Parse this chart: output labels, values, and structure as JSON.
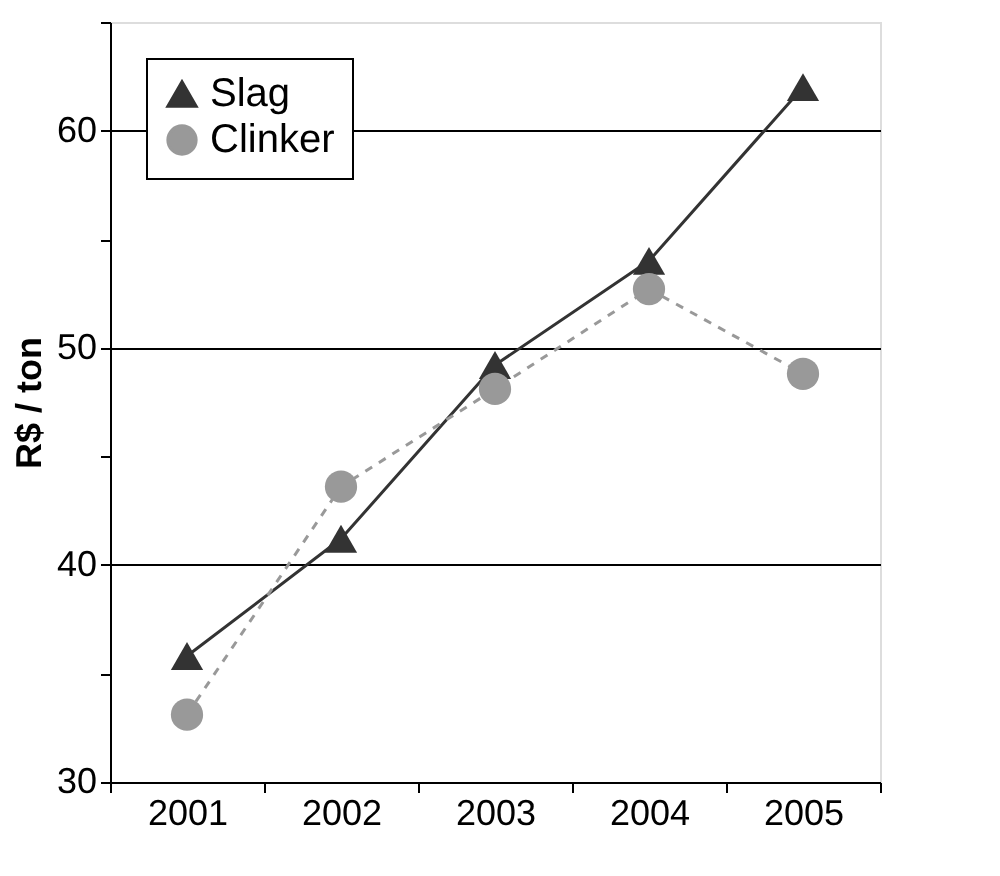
{
  "chart_data": {
    "type": "line",
    "ylabel": "R$ / ton",
    "categories": [
      "2001",
      "2002",
      "2003",
      "2004",
      "2005"
    ],
    "series": [
      {
        "name": "Slag",
        "color": "#333333",
        "marker": "triangle",
        "line_style": "solid",
        "values": [
          35.8,
          41.2,
          49.2,
          54.0,
          62.0
        ]
      },
      {
        "name": "Clinker",
        "color": "#999999",
        "marker": "circle",
        "line_style": "dashed",
        "values": [
          33.1,
          43.6,
          48.1,
          52.7,
          48.8
        ]
      }
    ],
    "ylim": [
      30,
      65
    ],
    "yticks": [
      30,
      {
        "value": 35,
        "label": null
      },
      40,
      {
        "value": 45,
        "label": null
      },
      50,
      {
        "value": 55,
        "label": null
      },
      60,
      {
        "value": 65,
        "label": null
      }
    ],
    "grid": "y",
    "legend": "top left"
  }
}
